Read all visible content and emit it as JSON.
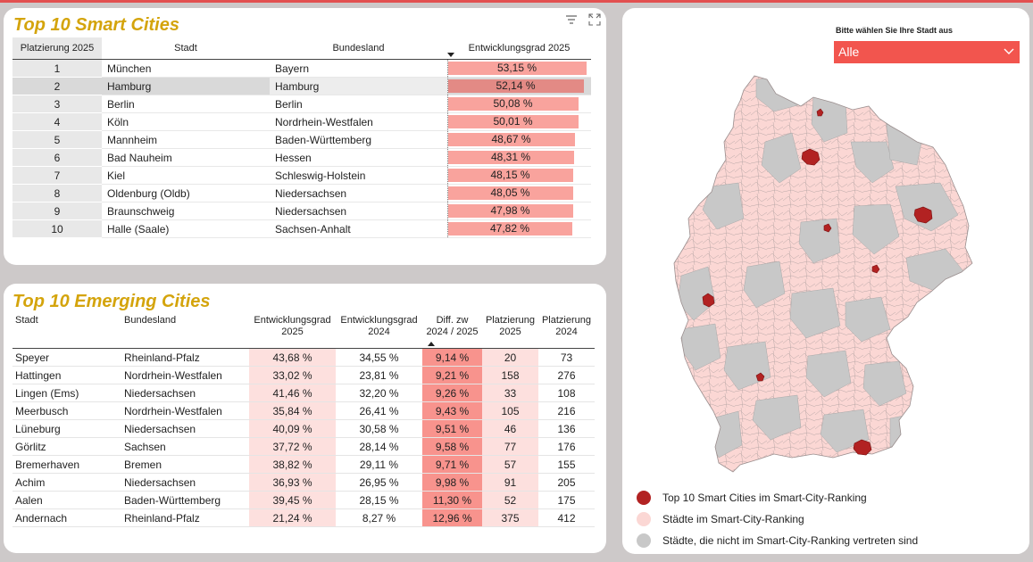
{
  "colors": {
    "accent": "#f2554e",
    "title": "#d4a40c",
    "bar": "#f9a39d",
    "top10": "#b22222",
    "ranked": "#fbd7d4",
    "unranked": "#c8c8c8"
  },
  "top10": {
    "title": "Top 10 Smart Cities",
    "headers": {
      "rank": "Platzierung 2025",
      "city": "Stadt",
      "state": "Bundesland",
      "dev": "Entwicklungsgrad 2025"
    },
    "rows": [
      {
        "rank": "1",
        "city": "München",
        "state": "Bayern",
        "dev": "53,15 %",
        "pct": 53.15
      },
      {
        "rank": "2",
        "city": "Hamburg",
        "state": "Hamburg",
        "dev": "52,14 %",
        "pct": 52.14
      },
      {
        "rank": "3",
        "city": "Berlin",
        "state": "Berlin",
        "dev": "50,08 %",
        "pct": 50.08
      },
      {
        "rank": "4",
        "city": "Köln",
        "state": "Nordrhein-Westfalen",
        "dev": "50,01 %",
        "pct": 50.01
      },
      {
        "rank": "5",
        "city": "Mannheim",
        "state": "Baden-Württemberg",
        "dev": "48,67 %",
        "pct": 48.67
      },
      {
        "rank": "6",
        "city": "Bad Nauheim",
        "state": "Hessen",
        "dev": "48,31 %",
        "pct": 48.31
      },
      {
        "rank": "7",
        "city": "Kiel",
        "state": "Schleswig-Holstein",
        "dev": "48,15 %",
        "pct": 48.15
      },
      {
        "rank": "8",
        "city": "Oldenburg (Oldb)",
        "state": "Niedersachsen",
        "dev": "48,05 %",
        "pct": 48.05
      },
      {
        "rank": "9",
        "city": "Braunschweig",
        "state": "Niedersachsen",
        "dev": "47,98 %",
        "pct": 47.98
      },
      {
        "rank": "10",
        "city": "Halle (Saale)",
        "state": "Sachsen-Anhalt",
        "dev": "47,82 %",
        "pct": 47.82
      }
    ]
  },
  "emerging": {
    "title": "Top 10 Emerging Cities",
    "headers": {
      "city": "Stadt",
      "state": "Bundesland",
      "dev25a": "Entwicklungsgrad",
      "dev25b": "2025",
      "dev24a": "Entwicklungsgrad",
      "dev24b": "2024",
      "diffa": "Diff. zw",
      "diffb": "2024 / 2025",
      "rank25a": "Platzierung",
      "rank25b": "2025",
      "rank24a": "Platzierung",
      "rank24b": "2024"
    },
    "rows": [
      {
        "city": "Speyer",
        "state": "Rheinland-Pfalz",
        "dev25": "43,68 %",
        "dev24": "34,55 %",
        "diff": "9,14 %",
        "rank25": "20",
        "rank24": "73"
      },
      {
        "city": "Hattingen",
        "state": "Nordrhein-Westfalen",
        "dev25": "33,02 %",
        "dev24": "23,81 %",
        "diff": "9,21 %",
        "rank25": "158",
        "rank24": "276"
      },
      {
        "city": "Lingen (Ems)",
        "state": "Niedersachsen",
        "dev25": "41,46 %",
        "dev24": "32,20 %",
        "diff": "9,26 %",
        "rank25": "33",
        "rank24": "108"
      },
      {
        "city": "Meerbusch",
        "state": "Nordrhein-Westfalen",
        "dev25": "35,84 %",
        "dev24": "26,41 %",
        "diff": "9,43 %",
        "rank25": "105",
        "rank24": "216"
      },
      {
        "city": "Lüneburg",
        "state": "Niedersachsen",
        "dev25": "40,09 %",
        "dev24": "30,58 %",
        "diff": "9,51 %",
        "rank25": "46",
        "rank24": "136"
      },
      {
        "city": "Görlitz",
        "state": "Sachsen",
        "dev25": "37,72 %",
        "dev24": "28,14 %",
        "diff": "9,58 %",
        "rank25": "77",
        "rank24": "176"
      },
      {
        "city": "Bremerhaven",
        "state": "Bremen",
        "dev25": "38,82 %",
        "dev24": "29,11 %",
        "diff": "9,71 %",
        "rank25": "57",
        "rank24": "155"
      },
      {
        "city": "Achim",
        "state": "Niedersachsen",
        "dev25": "36,93 %",
        "dev24": "26,95 %",
        "diff": "9,98 %",
        "rank25": "91",
        "rank24": "205"
      },
      {
        "city": "Aalen",
        "state": "Baden-Württemberg",
        "dev25": "39,45 %",
        "dev24": "28,15 %",
        "diff": "11,30 %",
        "rank25": "52",
        "rank24": "175"
      },
      {
        "city": "Andernach",
        "state": "Rheinland-Pfalz",
        "dev25": "21,24 %",
        "dev24": "8,27 %",
        "diff": "12,96 %",
        "rank25": "375",
        "rank24": "412"
      }
    ]
  },
  "map": {
    "select_label": "Bitte wählen Sie Ihre Stadt aus",
    "select_value": "Alle",
    "legend": [
      {
        "label": "Top 10 Smart Cities im Smart-City-Ranking",
        "color": "#b22222"
      },
      {
        "label": "Städte im Smart-City-Ranking",
        "color": "#fbd7d4"
      },
      {
        "label": "Städte, die nicht im Smart-City-Ranking vertreten sind",
        "color": "#c8c8c8"
      }
    ],
    "icons": [
      "filter-icon",
      "expand-icon"
    ]
  }
}
